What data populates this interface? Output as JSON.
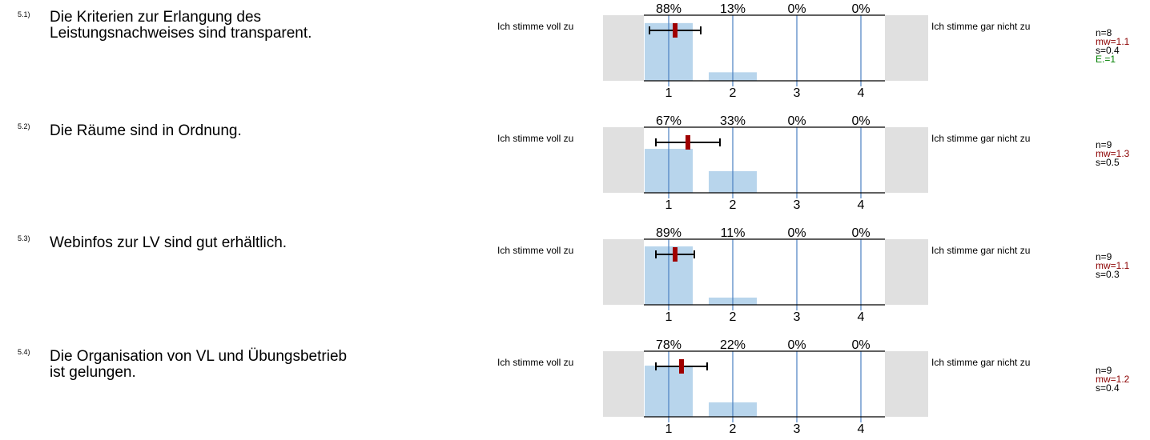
{
  "colors": {
    "bar": "#b8d5ec",
    "grid": "#4a7fc0",
    "gray_box": "#e0e0e0",
    "mean_marker": "#a00000",
    "mw_text": "#8b0000",
    "e_text": "#008000"
  },
  "questions": [
    {
      "number": "5.1)",
      "text_line1": "Die Kriterien zur Erlangung des",
      "text_line2": "Leistungsnachweises sind transparent.",
      "left_label": "Ich stimme voll zu",
      "right_label": "Ich stimme gar nicht zu",
      "stats": {
        "n": "n=8",
        "mw": "mw=1.1",
        "s": "s=0.4",
        "e": "E.=1"
      }
    },
    {
      "number": "5.2)",
      "text_line1": "Die Räume sind in Ordnung.",
      "text_line2": "",
      "left_label": "Ich stimme voll zu",
      "right_label": "Ich stimme gar nicht zu",
      "stats": {
        "n": "n=9",
        "mw": "mw=1.3",
        "s": "s=0.5",
        "e": ""
      }
    },
    {
      "number": "5.3)",
      "text_line1": "Webinfos zur LV sind gut erhältlich.",
      "text_line2": "",
      "left_label": "Ich stimme voll zu",
      "right_label": "Ich stimme gar nicht zu",
      "stats": {
        "n": "n=9",
        "mw": "mw=1.1",
        "s": "s=0.3",
        "e": ""
      }
    },
    {
      "number": "5.4)",
      "text_line1": "Die Organisation von VL und Übungsbetrieb",
      "text_line2": "ist gelungen.",
      "left_label": "Ich stimme voll zu",
      "right_label": "Ich stimme gar nicht zu",
      "stats": {
        "n": "n=9",
        "mw": "mw=1.2",
        "s": "s=0.4",
        "e": ""
      }
    }
  ],
  "chart_data": [
    {
      "type": "bar",
      "categories": [
        "1",
        "2",
        "3",
        "4"
      ],
      "values": [
        88,
        13,
        0,
        0
      ],
      "value_labels": [
        "88%",
        "13%",
        "0%",
        "0%"
      ],
      "ylim": [
        0,
        100
      ],
      "mean": 1.1,
      "sd": 0.4
    },
    {
      "type": "bar",
      "categories": [
        "1",
        "2",
        "3",
        "4"
      ],
      "values": [
        67,
        33,
        0,
        0
      ],
      "value_labels": [
        "67%",
        "33%",
        "0%",
        "0%"
      ],
      "ylim": [
        0,
        100
      ],
      "mean": 1.3,
      "sd": 0.5
    },
    {
      "type": "bar",
      "categories": [
        "1",
        "2",
        "3",
        "4"
      ],
      "values": [
        89,
        11,
        0,
        0
      ],
      "value_labels": [
        "89%",
        "11%",
        "0%",
        "0%"
      ],
      "ylim": [
        0,
        100
      ],
      "mean": 1.1,
      "sd": 0.3
    },
    {
      "type": "bar",
      "categories": [
        "1",
        "2",
        "3",
        "4"
      ],
      "values": [
        78,
        22,
        0,
        0
      ],
      "value_labels": [
        "78%",
        "22%",
        "0%",
        "0%"
      ],
      "ylim": [
        0,
        100
      ],
      "mean": 1.2,
      "sd": 0.4
    }
  ]
}
